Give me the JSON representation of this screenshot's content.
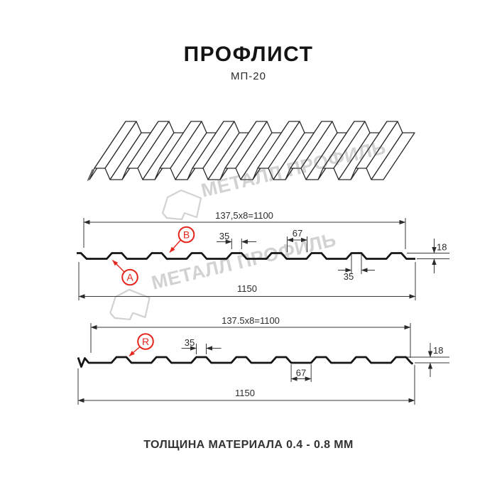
{
  "header": {
    "title": "ПРОФЛИСТ",
    "subtitle": "МП-20"
  },
  "watermark": {
    "brand": "МЕТАЛЛ ПРОФИЛЬ"
  },
  "profile_top": {
    "pitch_dim": "137,5x8=1100",
    "total_width": "1150",
    "crest_width": "35",
    "valley_width": "67",
    "height": "18",
    "bottom_crest_width": "35",
    "label_a": "A",
    "label_b": "B"
  },
  "profile_bottom": {
    "pitch_dim": "137.5x8=1100",
    "total_width": "1150",
    "crest_width": "35",
    "valley_width": "67",
    "height": "18",
    "label_r": "R"
  },
  "footer": {
    "thickness_note": "ТОЛЩИНА МАТЕРИАЛА 0.4 - 0.8 ММ"
  },
  "colors": {
    "accent_red": "#e5261d",
    "line": "#1a1a1a",
    "watermark": "#d2d2d2"
  }
}
